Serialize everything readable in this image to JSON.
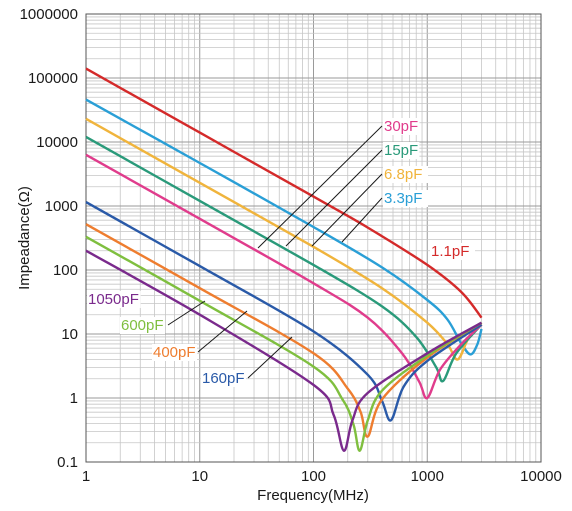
{
  "chart_data": {
    "type": "line",
    "title": "",
    "xlabel": "Frequency(MHz)",
    "ylabel": "Impeadance(Ω)",
    "x_scale": "log",
    "y_scale": "log",
    "xlim": [
      1,
      10000
    ],
    "ylim": [
      0.1,
      1000000
    ],
    "grid": true,
    "legend": "labels beside curves with leader lines",
    "x_ticks": [
      {
        "value": 1,
        "label": "1"
      },
      {
        "value": 10,
        "label": "10"
      },
      {
        "value": 100,
        "label": "100"
      },
      {
        "value": 1000,
        "label": "1000"
      },
      {
        "value": 10000,
        "label": "10000"
      }
    ],
    "y_ticks": [
      {
        "value": 0.1,
        "label": "0.1"
      },
      {
        "value": 1,
        "label": "1"
      },
      {
        "value": 10,
        "label": "10"
      },
      {
        "value": 100,
        "label": "100"
      },
      {
        "value": 1000,
        "label": "1000"
      },
      {
        "value": 10000,
        "label": "10000"
      },
      {
        "value": 100000,
        "label": "100000"
      },
      {
        "value": 1000000,
        "label": "1000000"
      }
    ],
    "series": [
      {
        "name": "1.1pF",
        "color": "#d42a2a",
        "points": [
          [
            1,
            140000
          ],
          [
            10,
            14000
          ],
          [
            100,
            1400
          ],
          [
            300,
            460
          ],
          [
            1000,
            120
          ],
          [
            2000,
            45
          ],
          [
            3000,
            18
          ]
        ]
      },
      {
        "name": "3.3pF",
        "color": "#2a9fd6",
        "points": [
          [
            1,
            46000
          ],
          [
            10,
            4700
          ],
          [
            100,
            470
          ],
          [
            400,
            110
          ],
          [
            1000,
            34
          ],
          [
            1500,
            17
          ],
          [
            2000,
            7
          ],
          [
            2400,
            4.8
          ],
          [
            2750,
            6.8
          ],
          [
            3000,
            12
          ]
        ]
      },
      {
        "name": "6.8pF",
        "color": "#f0b43c",
        "points": [
          [
            1,
            23000
          ],
          [
            10,
            2300
          ],
          [
            100,
            230
          ],
          [
            400,
            52
          ],
          [
            1000,
            15
          ],
          [
            1500,
            7
          ],
          [
            1850,
            4
          ],
          [
            2300,
            8.5
          ],
          [
            3000,
            15
          ]
        ]
      },
      {
        "name": "15pF",
        "color": "#2a9a7a",
        "points": [
          [
            1,
            12000
          ],
          [
            10,
            1200
          ],
          [
            100,
            120
          ],
          [
            400,
            27
          ],
          [
            800,
            9
          ],
          [
            1200,
            3
          ],
          [
            1380,
            1.85
          ],
          [
            1800,
            5
          ],
          [
            3000,
            14
          ]
        ]
      },
      {
        "name": "30pF",
        "color": "#e03c8c",
        "points": [
          [
            1,
            6300
          ],
          [
            10,
            630
          ],
          [
            100,
            62
          ],
          [
            300,
            18
          ],
          [
            600,
            5
          ],
          [
            850,
            1.8
          ],
          [
            1000,
            1
          ],
          [
            1300,
            2.8
          ],
          [
            2000,
            7
          ],
          [
            3000,
            14
          ]
        ]
      },
      {
        "name": "160pF",
        "color": "#2a5aa8",
        "points": [
          [
            1,
            1150
          ],
          [
            10,
            115
          ],
          [
            100,
            11
          ],
          [
            300,
            2.3
          ],
          [
            400,
            0.9
          ],
          [
            480,
            0.45
          ],
          [
            620,
            1.5
          ],
          [
            1000,
            3.8
          ],
          [
            3000,
            14
          ]
        ]
      },
      {
        "name": "400pF",
        "color": "#ee7d2f",
        "points": [
          [
            1,
            520
          ],
          [
            10,
            52
          ],
          [
            100,
            5
          ],
          [
            200,
            1.4
          ],
          [
            260,
            0.6
          ],
          [
            300,
            0.25
          ],
          [
            400,
            0.95
          ],
          [
            1000,
            4.3
          ],
          [
            3000,
            15
          ]
        ]
      },
      {
        "name": "600pF",
        "color": "#7fbf3f",
        "points": [
          [
            1,
            330
          ],
          [
            10,
            33
          ],
          [
            100,
            3.1
          ],
          [
            180,
            0.95
          ],
          [
            225,
            0.38
          ],
          [
            255,
            0.15
          ],
          [
            300,
            0.45
          ],
          [
            400,
            1.3
          ],
          [
            1000,
            4.6
          ],
          [
            3000,
            15
          ]
        ]
      },
      {
        "name": "1050pF",
        "color": "#7a2a8c",
        "points": [
          [
            1,
            200
          ],
          [
            10,
            20
          ],
          [
            100,
            1.6
          ],
          [
            150,
            0.55
          ],
          [
            185,
            0.15
          ],
          [
            220,
            0.45
          ],
          [
            300,
            1.2
          ],
          [
            1000,
            5
          ],
          [
            3000,
            15
          ]
        ]
      }
    ],
    "labels": [
      {
        "series": "30pF",
        "text": "30pF",
        "color": "#e03c8c",
        "anchor_x": 30,
        "anchor_y": 170,
        "leader_to": [
          440,
          125
        ]
      },
      {
        "series": "15pF",
        "text": "15pF",
        "color": "#2a9a7a",
        "anchor_x": 60,
        "anchor_y": 145,
        "leader_to": [
          440,
          150
        ]
      },
      {
        "series": "6.8pF",
        "text": "6.8pF",
        "color": "#f0b43c",
        "anchor_x": 110,
        "anchor_y": 195,
        "leader_to": [
          440,
          175
        ]
      },
      {
        "series": "3.3pF",
        "text": "3.3pF",
        "color": "#2a9fd6",
        "anchor_x": 280,
        "anchor_y": 165,
        "leader_to": [
          440,
          198
        ]
      },
      {
        "series": "1.1pF",
        "text": "1.1pF",
        "color": "#d42a2a",
        "anchor_x": null,
        "anchor_y": null,
        "leader_to": null
      },
      {
        "series": "1050pF",
        "text": "1050pF",
        "color": "#7a2a8c",
        "anchor_x": 4.5,
        "anchor_y": 42,
        "leader_to": null
      },
      {
        "series": "600pF",
        "text": "600pF",
        "color": "#7fbf3f",
        "anchor_x": 4.5,
        "anchor_y": 25,
        "leader_to": null
      },
      {
        "series": "400pF",
        "text": "400pF",
        "color": "#ee7d2f",
        "anchor_x": 10,
        "anchor_y": 22,
        "leader_to": null
      },
      {
        "series": "160pF",
        "text": "160pF",
        "color": "#2a5aa8",
        "anchor_x": 70,
        "anchor_y": 22,
        "leader_to": null
      }
    ]
  }
}
